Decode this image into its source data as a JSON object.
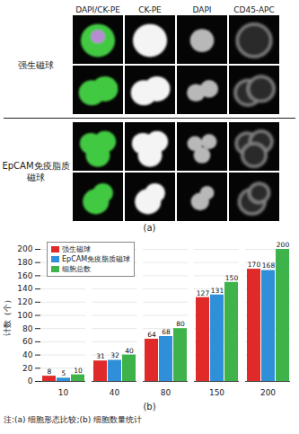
{
  "panels": {
    "a": "(a)",
    "b": "(b)"
  },
  "panel_a": {
    "columns": [
      "DAPI/CK-PE",
      "CK-PE",
      "DAPI",
      "CD45-APC"
    ],
    "groups": [
      "强生磁球",
      "EpCAM免疫脂质磁球"
    ]
  },
  "chart_data": {
    "type": "bar",
    "ylabel": "计数（个）",
    "categories": [
      "10",
      "40",
      "80",
      "150",
      "200"
    ],
    "series": [
      {
        "name": "强生磁球",
        "color": "#e02a2a",
        "values": [
          8,
          31,
          64,
          127,
          170
        ]
      },
      {
        "name": "EpCAM免疫脂质磁球",
        "color": "#2f8fd8",
        "values": [
          5,
          32,
          68,
          131,
          168
        ]
      },
      {
        "name": "细胞总数",
        "color": "#3db34a",
        "values": [
          10,
          40,
          80,
          150,
          200
        ]
      }
    ],
    "ylim": [
      0,
      200
    ],
    "yticks": [
      0,
      20,
      40,
      60,
      80,
      100,
      120,
      140,
      160,
      180,
      200
    ],
    "grid": true,
    "legend": "upper left",
    "data_labels": true
  },
  "note": "注:(a) 细胞形态比较;(b) 细胞数量统计"
}
